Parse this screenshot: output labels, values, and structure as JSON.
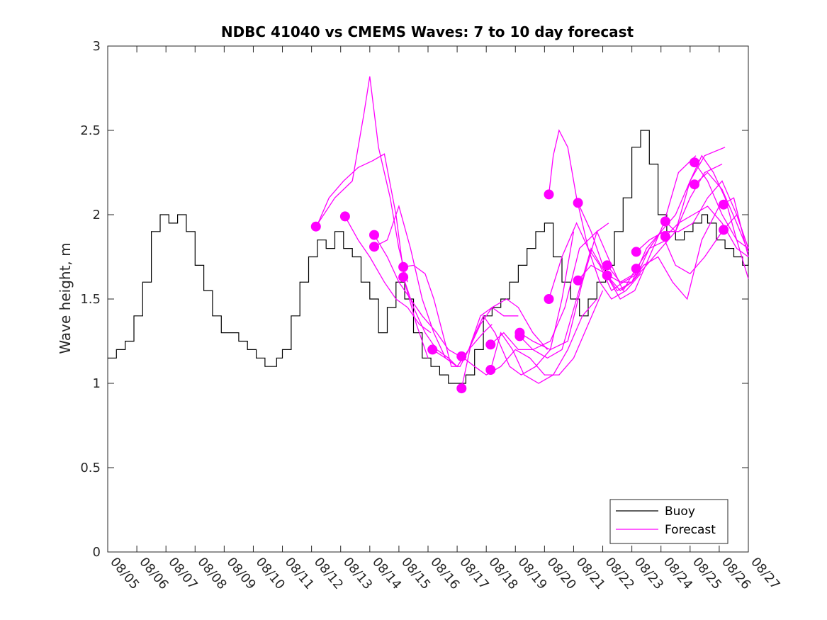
{
  "chart_data": {
    "type": "line",
    "title": "NDBC 41040 vs CMEMS Waves: 7 to 10 day forecast",
    "xlabel": "",
    "ylabel": "Wave height, m",
    "xlim": [
      0,
      22
    ],
    "ylim": [
      0,
      3
    ],
    "x_tick_labels": [
      "08/05",
      "08/06",
      "08/07",
      "08/08",
      "08/09",
      "08/10",
      "08/11",
      "08/12",
      "08/13",
      "08/14",
      "08/15",
      "08/16",
      "08/17",
      "08/18",
      "08/19",
      "08/20",
      "08/21",
      "08/22",
      "08/23",
      "08/24",
      "08/25",
      "08/26",
      "08/27"
    ],
    "y_ticks": [
      0,
      0.5,
      1,
      1.5,
      2,
      2.5,
      3
    ],
    "y_tick_labels": [
      "0",
      "0.5",
      "1",
      "1.5",
      "2",
      "2.5",
      "3"
    ],
    "legend": {
      "position": "bottom-right",
      "entries": [
        "Buoy",
        "Forecast"
      ]
    },
    "colors": {
      "buoy": "#000000",
      "forecast": "#ff00ff",
      "axis": "#262626"
    },
    "buoy_series": {
      "name": "Buoy",
      "x": [
        0,
        0.3,
        0.6,
        0.9,
        1.2,
        1.5,
        1.8,
        2.1,
        2.4,
        2.7,
        3.0,
        3.3,
        3.6,
        3.9,
        4.2,
        4.5,
        4.8,
        5.1,
        5.4,
        5.6,
        5.8,
        6.0,
        6.3,
        6.6,
        6.9,
        7.2,
        7.5,
        7.8,
        8.1,
        8.4,
        8.7,
        9.0,
        9.3,
        9.6,
        9.9,
        10.2,
        10.5,
        10.8,
        11.1,
        11.4,
        11.7,
        12.0,
        12.3,
        12.6,
        12.9,
        13.2,
        13.5,
        13.8,
        14.1,
        14.4,
        14.7,
        15.0,
        15.3,
        15.6,
        15.9,
        16.2,
        16.5,
        16.8,
        17.1,
        17.4,
        17.7,
        18.0,
        18.3,
        18.6,
        18.9,
        19.2,
        19.5,
        19.8,
        20.1,
        20.4,
        20.6,
        20.9,
        21.2,
        21.5,
        21.8,
        22.0
      ],
      "y": [
        1.15,
        1.2,
        1.25,
        1.4,
        1.6,
        1.9,
        2.0,
        1.95,
        2.0,
        1.9,
        1.7,
        1.55,
        1.4,
        1.3,
        1.3,
        1.25,
        1.2,
        1.15,
        1.1,
        1.1,
        1.15,
        1.2,
        1.4,
        1.6,
        1.75,
        1.85,
        1.8,
        1.9,
        1.8,
        1.75,
        1.6,
        1.5,
        1.3,
        1.45,
        1.6,
        1.5,
        1.3,
        1.15,
        1.1,
        1.05,
        1.0,
        1.0,
        1.05,
        1.2,
        1.4,
        1.45,
        1.5,
        1.6,
        1.7,
        1.8,
        1.9,
        1.95,
        1.75,
        1.6,
        1.5,
        1.4,
        1.5,
        1.6,
        1.7,
        1.9,
        2.1,
        2.4,
        2.5,
        2.3,
        2.0,
        1.9,
        1.85,
        1.9,
        1.95,
        2.0,
        1.95,
        1.85,
        1.8,
        1.75,
        1.7,
        1.8
      ]
    },
    "forecast_series": [
      {
        "name": "Forecast 1",
        "x": [
          7.15,
          7.8,
          8.4,
          8.8,
          9.0,
          9.3,
          9.7,
          10.0,
          10.3
        ],
        "y": [
          1.93,
          2.1,
          2.2,
          2.6,
          2.82,
          2.4,
          2.1,
          1.8,
          1.6
        ]
      },
      {
        "name": "Forecast 2",
        "x": [
          7.15,
          7.6,
          8.1,
          8.6,
          9.1,
          9.5,
          9.9,
          10.2,
          10.6,
          11.0
        ],
        "y": [
          1.92,
          2.1,
          2.2,
          2.28,
          2.32,
          2.36,
          2.0,
          1.6,
          1.35,
          1.15
        ]
      },
      {
        "name": "Forecast 3",
        "x": [
          8.15,
          8.6,
          9.0,
          9.5,
          9.9,
          10.3,
          10.7,
          11.1
        ],
        "y": [
          1.99,
          1.85,
          1.75,
          1.6,
          1.5,
          1.45,
          1.35,
          1.3
        ]
      },
      {
        "name": "Forecast 4",
        "x": [
          9.15,
          9.6,
          10.0,
          10.4,
          10.8,
          11.2,
          11.6,
          12.0
        ],
        "y": [
          1.81,
          1.85,
          2.05,
          1.8,
          1.5,
          1.3,
          1.15,
          1.1
        ]
      },
      {
        "name": "Forecast 5",
        "x": [
          9.15,
          9.6,
          10.0,
          10.4,
          10.8,
          11.3,
          11.7,
          12.2
        ],
        "y": [
          1.88,
          1.75,
          1.6,
          1.5,
          1.4,
          1.3,
          1.2,
          1.15
        ]
      },
      {
        "name": "Forecast 6",
        "x": [
          10.15,
          10.5,
          10.9,
          11.2,
          11.5,
          11.8,
          12.1,
          12.4,
          12.9,
          13.2
        ],
        "y": [
          1.69,
          1.7,
          1.65,
          1.5,
          1.3,
          1.1,
          1.1,
          1.2,
          1.3,
          1.35
        ]
      },
      {
        "name": "Forecast 7",
        "x": [
          10.15,
          10.5,
          10.9,
          11.3,
          11.7,
          12.0,
          12.4,
          12.8,
          13.2,
          13.6,
          14.1
        ],
        "y": [
          1.63,
          1.45,
          1.3,
          1.2,
          1.15,
          1.1,
          1.2,
          1.4,
          1.45,
          1.4,
          1.4
        ]
      },
      {
        "name": "Forecast 8",
        "x": [
          11.15,
          11.6,
          12.0,
          12.4,
          12.8,
          13.2,
          13.7,
          14.1,
          14.6,
          15.1
        ],
        "y": [
          1.2,
          1.15,
          1.1,
          1.2,
          1.35,
          1.45,
          1.5,
          1.45,
          1.3,
          1.2
        ]
      },
      {
        "name": "Forecast 9",
        "x": [
          12.15,
          12.5,
          12.9,
          13.3,
          13.8,
          14.2,
          14.7,
          15.2,
          15.6,
          16.0
        ],
        "y": [
          0.97,
          1.25,
          1.4,
          1.3,
          1.1,
          1.05,
          1.1,
          1.2,
          1.5,
          1.9
        ]
      },
      {
        "name": "Forecast 10",
        "x": [
          12.15,
          12.6,
          13.0,
          13.5,
          14.0,
          14.5,
          15.0,
          15.5,
          16.0,
          16.5,
          17.0
        ],
        "y": [
          1.16,
          1.1,
          1.05,
          1.1,
          1.2,
          1.15,
          1.05,
          1.05,
          1.15,
          1.35,
          1.55
        ]
      },
      {
        "name": "Forecast 11",
        "x": [
          13.15,
          13.5,
          13.9,
          14.3,
          14.8,
          15.3,
          15.8,
          16.3,
          16.8
        ],
        "y": [
          1.08,
          1.3,
          1.2,
          1.05,
          1.0,
          1.05,
          1.2,
          1.4,
          1.5
        ]
      },
      {
        "name": "Forecast 12",
        "x": [
          13.15,
          13.6,
          14.1,
          14.6,
          15.2,
          15.7,
          16.2,
          16.8,
          17.2
        ],
        "y": [
          1.23,
          1.3,
          1.2,
          1.2,
          1.25,
          1.45,
          1.8,
          1.9,
          1.95
        ]
      },
      {
        "name": "Forecast 13",
        "x": [
          14.15,
          14.6,
          15.1,
          15.6,
          16.1,
          16.6,
          17.1,
          17.6,
          18.1
        ],
        "y": [
          1.28,
          1.2,
          1.15,
          1.2,
          1.5,
          1.8,
          1.65,
          1.6,
          1.65
        ]
      },
      {
        "name": "Forecast 14",
        "x": [
          14.15,
          14.6,
          15.2,
          15.8,
          16.3,
          16.8,
          17.3,
          17.7,
          18.2
        ],
        "y": [
          1.3,
          1.25,
          1.2,
          1.25,
          1.6,
          1.9,
          1.7,
          1.55,
          1.7
        ]
      },
      {
        "name": "Forecast 15",
        "x": [
          15.15,
          15.3,
          15.5,
          15.8,
          16.1,
          16.5,
          16.9,
          17.3,
          17.8,
          18.3
        ],
        "y": [
          2.12,
          2.35,
          2.5,
          2.4,
          2.1,
          1.8,
          1.6,
          1.5,
          1.55,
          1.65
        ]
      },
      {
        "name": "Forecast 16",
        "x": [
          15.15,
          15.6,
          16.1,
          16.5,
          16.9,
          17.3,
          17.7,
          18.2,
          18.6,
          19.2
        ],
        "y": [
          1.5,
          1.75,
          1.95,
          1.8,
          1.7,
          1.55,
          1.6,
          1.65,
          1.8,
          1.85
        ]
      },
      {
        "name": "Forecast 17",
        "x": [
          16.15,
          16.6,
          17.1,
          17.6,
          18.1,
          18.6,
          19.1,
          19.6,
          20.2
        ],
        "y": [
          2.07,
          1.9,
          1.65,
          1.5,
          1.55,
          1.75,
          1.95,
          2.25,
          2.35
        ]
      },
      {
        "name": "Forecast 18",
        "x": [
          16.15,
          16.6,
          17.1,
          17.5,
          18.0,
          18.5,
          19.0,
          19.5,
          20.0,
          20.5,
          21.1
        ],
        "y": [
          1.61,
          1.7,
          1.65,
          1.55,
          1.6,
          1.7,
          1.8,
          1.9,
          2.1,
          2.25,
          2.3
        ]
      },
      {
        "name": "Forecast 19",
        "x": [
          17.15,
          17.6,
          18.0,
          18.5,
          19.0,
          19.5,
          20.0,
          20.5,
          21.2
        ],
        "y": [
          1.7,
          1.6,
          1.6,
          1.8,
          1.9,
          2.0,
          2.2,
          2.35,
          2.4
        ]
      },
      {
        "name": "Forecast 20",
        "x": [
          17.15,
          17.6,
          18.0,
          18.4,
          18.9,
          19.4,
          19.9,
          20.4,
          21.0,
          21.5,
          22.0
        ],
        "y": [
          1.64,
          1.55,
          1.6,
          1.7,
          1.75,
          1.6,
          1.5,
          1.85,
          2.05,
          2.1,
          1.75
        ]
      },
      {
        "name": "Forecast 21",
        "x": [
          18.15,
          18.6,
          19.1,
          19.6,
          20.1,
          20.6,
          21.1,
          21.6,
          22.0
        ],
        "y": [
          1.78,
          1.85,
          1.9,
          1.9,
          1.95,
          2.1,
          2.2,
          2.0,
          1.8
        ]
      },
      {
        "name": "Forecast 22",
        "x": [
          18.15,
          18.6,
          19.0,
          19.5,
          20.0,
          20.5,
          21.1,
          21.6,
          22.0
        ],
        "y": [
          1.68,
          1.8,
          1.9,
          1.7,
          1.65,
          1.75,
          1.9,
          2.0,
          1.8
        ]
      },
      {
        "name": "Forecast 23",
        "x": [
          19.15,
          19.5,
          20.0,
          20.4,
          20.8,
          21.2,
          21.6,
          22.0
        ],
        "y": [
          1.96,
          1.9,
          2.2,
          2.35,
          2.25,
          2.1,
          1.85,
          1.62
        ]
      },
      {
        "name": "Forecast 24",
        "x": [
          19.15,
          19.6,
          20.1,
          20.6,
          21.1,
          21.6,
          22.0
        ],
        "y": [
          1.87,
          1.95,
          2.0,
          2.05,
          1.95,
          1.8,
          1.75
        ]
      },
      {
        "name": "Forecast 25",
        "x": [
          20.15,
          20.6,
          21.1,
          21.6,
          22.0
        ],
        "y": [
          2.31,
          2.2,
          2.0,
          1.85,
          1.8
        ]
      },
      {
        "name": "Forecast 26",
        "x": [
          20.15,
          20.6,
          21.1,
          21.6,
          22.0
        ],
        "y": [
          2.18,
          2.25,
          2.15,
          1.95,
          1.78
        ]
      }
    ],
    "start_markers": {
      "x": [
        7.15,
        8.15,
        9.15,
        9.15,
        10.15,
        10.15,
        11.15,
        12.15,
        12.15,
        13.15,
        13.15,
        14.15,
        14.15,
        15.15,
        15.15,
        16.15,
        16.15,
        17.15,
        17.15,
        18.15,
        18.15,
        19.15,
        19.15,
        20.15,
        20.15,
        21.15,
        21.15
      ],
      "y": [
        1.93,
        1.99,
        1.88,
        1.81,
        1.69,
        1.63,
        1.2,
        1.16,
        0.97,
        1.23,
        1.08,
        1.3,
        1.28,
        2.12,
        1.5,
        2.07,
        1.61,
        1.7,
        1.64,
        1.78,
        1.68,
        1.96,
        1.87,
        2.31,
        2.18,
        2.06,
        1.91
      ]
    }
  }
}
